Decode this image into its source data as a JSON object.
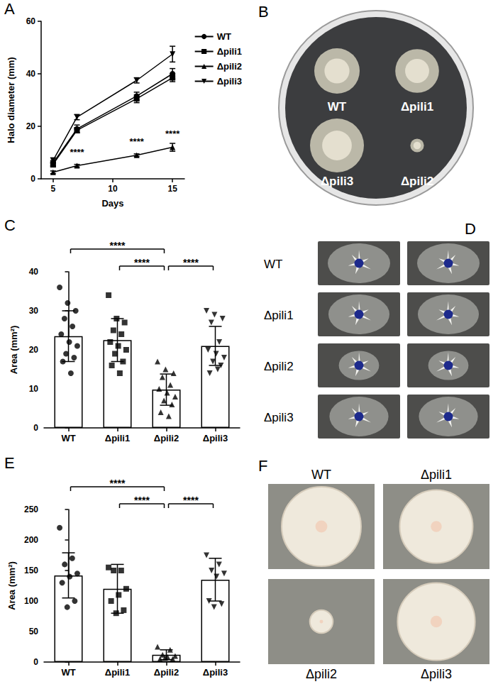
{
  "chart_data": [
    {
      "panel": "A",
      "type": "line",
      "x_label": "Days",
      "y_label": "Halo diameter (mm)",
      "x": [
        5,
        7,
        12,
        15
      ],
      "xlim": [
        4,
        16
      ],
      "xticks": [
        5,
        10,
        15
      ],
      "ylim": [
        0,
        60
      ],
      "yticks": [
        0,
        20,
        40,
        60
      ],
      "grid": false,
      "legend": "right",
      "series": [
        {
          "name": "WT",
          "color": "#000000",
          "marker": "circle",
          "values": [
            6,
            19,
            31.5,
            40
          ],
          "errors": [
            1,
            1.5,
            1.5,
            2
          ]
        },
        {
          "name": "Δpili1",
          "color": "#000000",
          "marker": "square",
          "values": [
            5.5,
            18.5,
            30.5,
            38.5
          ],
          "errors": [
            1,
            1,
            1.5,
            1.5
          ]
        },
        {
          "name": "Δpili2",
          "color": "#000000",
          "marker": "triangle",
          "values": [
            2.5,
            5,
            9,
            12
          ],
          "errors": [
            0.5,
            0.5,
            0.5,
            1.5
          ],
          "annotations": [
            null,
            "****",
            "****",
            "****"
          ]
        },
        {
          "name": "Δpili3",
          "color": "#000000",
          "marker": "triangle_down",
          "values": [
            7,
            23.5,
            37.5,
            47.5
          ],
          "errors": [
            1,
            1,
            1,
            3
          ]
        }
      ]
    },
    {
      "panel": "C",
      "type": "bar",
      "y_label": "Area (mm²)",
      "categories": [
        "WT",
        "Δpili1",
        "Δpili2",
        "Δpili3"
      ],
      "values": [
        23.5,
        22.5,
        9.8,
        21
      ],
      "errors": [
        6.5,
        5.5,
        4,
        5
      ],
      "color": "#ffffff",
      "ylim": [
        0,
        40
      ],
      "yticks": [
        0,
        10,
        20,
        30,
        40
      ],
      "grid": false,
      "points": [
        {
          "category": "WT",
          "marker": "circle",
          "values": [
            36,
            32,
            30,
            28,
            26,
            24,
            22,
            21,
            19,
            18,
            17,
            14
          ]
        },
        {
          "category": "Δpili1",
          "marker": "square",
          "values": [
            34,
            28,
            27,
            25,
            24,
            22,
            21,
            20,
            19,
            17,
            16,
            14
          ]
        },
        {
          "category": "Δpili2",
          "marker": "triangle",
          "values": [
            17,
            15,
            14,
            13,
            11,
            10,
            9,
            8,
            7,
            6,
            4,
            3
          ]
        },
        {
          "category": "Δpili3",
          "marker": "triangle_down",
          "values": [
            30,
            29,
            28,
            27,
            22,
            20,
            19,
            18,
            17,
            16,
            14,
            15
          ]
        }
      ],
      "comparisons": [
        {
          "pair": [
            "WT",
            "Δpili2"
          ],
          "label": "****"
        },
        {
          "pair": [
            "Δpili1",
            "Δpili2"
          ],
          "label": "****"
        },
        {
          "pair": [
            "Δpili2",
            "Δpili3"
          ],
          "label": "****"
        }
      ]
    },
    {
      "panel": "E",
      "type": "bar",
      "y_label": "Area (mm²)",
      "categories": [
        "WT",
        "Δpili1",
        "Δpili2",
        "Δpili3"
      ],
      "values": [
        142,
        120,
        12,
        135
      ],
      "errors": [
        37,
        40,
        8,
        35
      ],
      "color": "#ffffff",
      "ylim": [
        0,
        250
      ],
      "yticks": [
        0,
        50,
        100,
        150,
        200,
        250
      ],
      "grid": false,
      "points": [
        {
          "category": "WT",
          "marker": "circle",
          "values": [
            220,
            170,
            160,
            145,
            140,
            130,
            100,
            90
          ]
        },
        {
          "category": "Δpili1",
          "marker": "square",
          "values": [
            155,
            150,
            150,
            120,
            110,
            100,
            85,
            80
          ]
        },
        {
          "category": "Δpili2",
          "marker": "triangle",
          "values": [
            25,
            20,
            12,
            10,
            8,
            5,
            5,
            7
          ]
        },
        {
          "category": "Δpili3",
          "marker": "triangle_down",
          "values": [
            175,
            160,
            150,
            145,
            140,
            100,
            95,
            90
          ]
        }
      ],
      "comparisons": [
        {
          "pair": [
            "WT",
            "Δpili2"
          ],
          "label": "****"
        },
        {
          "pair": [
            "Δpili1",
            "Δpili2"
          ],
          "label": "****"
        },
        {
          "pair": [
            "Δpili2",
            "Δpili3"
          ],
          "label": "****"
        }
      ]
    }
  ],
  "photos": [
    {
      "panel": "B",
      "labels": [
        [
          "WT",
          "Δpili1"
        ],
        [
          "Δpili3",
          "Δpili2"
        ]
      ]
    },
    {
      "panel": "D",
      "rows": [
        "WT",
        "Δpili1",
        "Δpili2",
        "Δpili3"
      ]
    },
    {
      "panel": "F",
      "labels": [
        [
          "WT",
          "Δpili1"
        ],
        [
          "Δpili2",
          "Δpili3"
        ]
      ]
    }
  ]
}
